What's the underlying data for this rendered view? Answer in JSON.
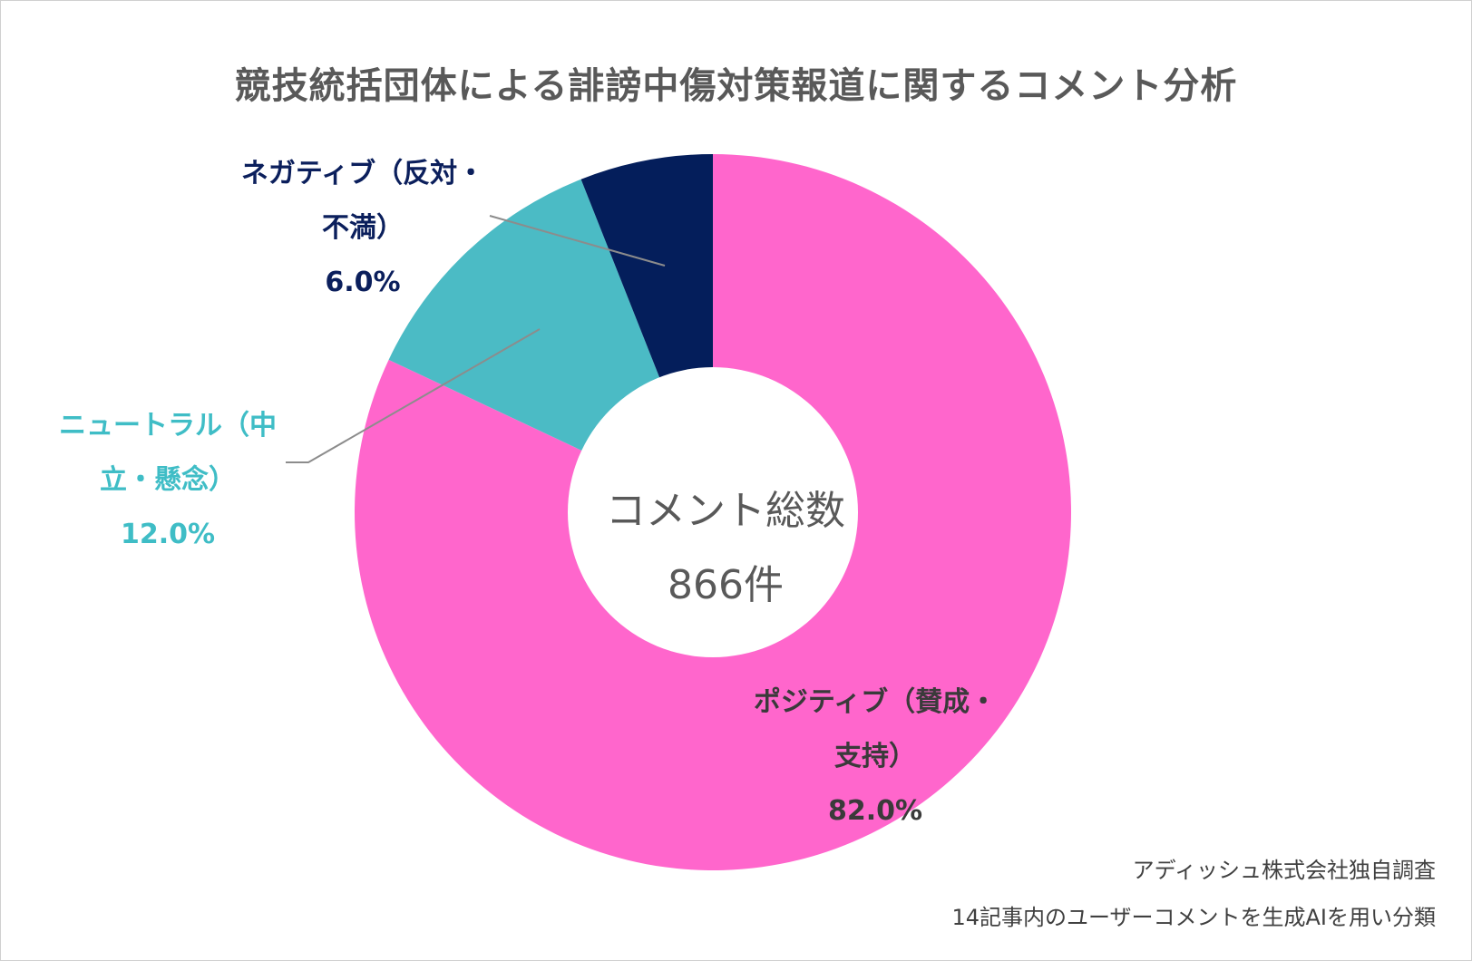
{
  "title": "競技統括団体による誹謗中傷対策報道に関するコメント分析",
  "center": {
    "label": "コメント総数",
    "count": "866件"
  },
  "chart_data": {
    "type": "pie",
    "variant": "donut",
    "title": "競技統括団体による誹謗中傷対策報道に関するコメント分析",
    "slices": [
      {
        "name": "ポジティブ（賛成・支持）",
        "value": 82.0,
        "percent_label": "82.0%",
        "color": "#ff66cc"
      },
      {
        "name": "ニュートラル（中立・懸念）",
        "value": 12.0,
        "percent_label": "12.0%",
        "color": "#4bbbc5"
      },
      {
        "name": "ネガティブ（反対・不満）",
        "value": 6.0,
        "percent_label": "6.0%",
        "color": "#041e5b"
      }
    ],
    "labels": {
      "positive": {
        "line1": "ポジティブ（賛成・",
        "line2": "支持）",
        "pct": "82.0%"
      },
      "neutral": {
        "line1": "ニュートラル（中",
        "line2": "立・懸念）",
        "pct": "12.0%"
      },
      "negative": {
        "line1": "ネガティブ（反対・",
        "line2": "不満）",
        "pct": "6.0%"
      }
    }
  },
  "source": {
    "line1": "アディッシュ株式会社独自調査",
    "line2": "14記事内のユーザーコメントを生成AIを用い分類"
  },
  "colors": {
    "leader_line": "#8c8c8c",
    "title_text": "#595959"
  }
}
